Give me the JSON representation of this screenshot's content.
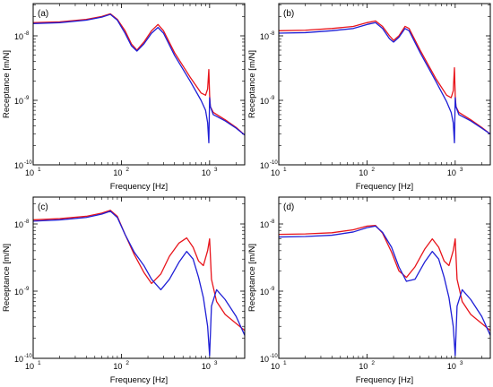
{
  "colors": {
    "red": "#e8141b",
    "blue": "#1f1fd6"
  },
  "chart_data": [
    {
      "type": "line",
      "panel_label": "(a)",
      "xlabel": "Frequency [Hz]",
      "ylabel": "Receptance [m/N]",
      "xscale": "log",
      "yscale": "log",
      "xlim": [
        10,
        2500
      ],
      "ylim": [
        1e-10,
        5e-08
      ],
      "x_tick_labels": [
        "10",
        "10",
        "10"
      ],
      "x_tick_exponents": [
        "1",
        "2",
        "3"
      ],
      "y_tick_labels": [
        "10",
        "10",
        "10"
      ],
      "y_tick_exponents": [
        "-10",
        "-9",
        "-8"
      ],
      "series": [
        {
          "color": "red",
          "x": [
            10,
            20,
            40,
            60,
            75,
            90,
            110,
            130,
            150,
            180,
            220,
            260,
            300,
            400,
            600,
            800,
            900,
            950,
            980,
            1000,
            1020,
            1100,
            1500,
            2000,
            2500
          ],
          "y": [
            1.6e-08,
            1.65e-08,
            1.8e-08,
            2e-08,
            2.2e-08,
            1.8e-08,
            1.2e-08,
            7.5e-09,
            6e-09,
            8e-09,
            1.2e-08,
            1.5e-08,
            1.2e-08,
            5.5e-09,
            2.3e-09,
            1.3e-09,
            1.2e-09,
            1.5e-09,
            3e-09,
            1.2e-09,
            8e-10,
            6.5e-10,
            5e-10,
            3.8e-10,
            2.9e-10
          ]
        },
        {
          "color": "blue",
          "x": [
            10,
            20,
            40,
            60,
            75,
            90,
            110,
            130,
            150,
            180,
            220,
            260,
            300,
            400,
            600,
            800,
            900,
            950,
            980,
            1000,
            1020,
            1100,
            1500,
            2000,
            2500
          ],
          "y": [
            1.55e-08,
            1.6e-08,
            1.75e-08,
            1.95e-08,
            2.15e-08,
            1.75e-08,
            1.1e-08,
            7e-09,
            5.8e-09,
            7.5e-09,
            1.1e-08,
            1.35e-08,
            1.1e-08,
            5e-09,
            2e-09,
            1e-09,
            7e-10,
            4.5e-10,
            2.2e-10,
            1.1e-09,
            8e-10,
            6e-10,
            4.8e-10,
            3.7e-10,
            2.9e-10
          ]
        }
      ]
    },
    {
      "type": "line",
      "panel_label": "(b)",
      "xlabel": "Frequency [Hz]",
      "ylabel": "Receptance [m/N]",
      "xscale": "log",
      "yscale": "log",
      "xlim": [
        10,
        2500
      ],
      "ylim": [
        1e-10,
        5e-08
      ],
      "x_tick_labels": [
        "10",
        "10",
        "10"
      ],
      "x_tick_exponents": [
        "1",
        "2",
        "3"
      ],
      "y_tick_labels": [
        "10",
        "10",
        "10"
      ],
      "y_tick_exponents": [
        "-10",
        "-9",
        "-8"
      ],
      "series": [
        {
          "color": "red",
          "x": [
            10,
            20,
            40,
            70,
            100,
            125,
            150,
            180,
            200,
            230,
            270,
            300,
            400,
            600,
            800,
            900,
            950,
            980,
            1000,
            1020,
            1100,
            1500,
            2000,
            2500
          ],
          "y": [
            1.2e-08,
            1.22e-08,
            1.3e-08,
            1.4e-08,
            1.6e-08,
            1.7e-08,
            1.4e-08,
            1e-08,
            8.5e-09,
            1e-08,
            1.4e-08,
            1.3e-08,
            6e-09,
            2.2e-09,
            1.2e-09,
            1.1e-09,
            1.4e-09,
            3.2e-09,
            1.2e-09,
            8e-10,
            6.5e-10,
            5e-10,
            3.8e-10,
            3e-10
          ]
        },
        {
          "color": "blue",
          "x": [
            10,
            20,
            40,
            70,
            100,
            125,
            150,
            180,
            200,
            230,
            270,
            300,
            400,
            600,
            800,
            900,
            950,
            980,
            1000,
            1020,
            1100,
            1500,
            2000,
            2500
          ],
          "y": [
            1.1e-08,
            1.12e-08,
            1.2e-08,
            1.3e-08,
            1.5e-08,
            1.6e-08,
            1.3e-08,
            9e-09,
            8e-09,
            9.5e-09,
            1.3e-08,
            1.2e-08,
            5.5e-09,
            2e-09,
            9.5e-10,
            6.5e-10,
            4.5e-10,
            2.2e-10,
            1.1e-09,
            8e-10,
            6e-10,
            4.8e-10,
            3.7e-10,
            3e-10
          ]
        }
      ]
    },
    {
      "type": "line",
      "panel_label": "(c)",
      "xlabel": "Frequency [Hz]",
      "ylabel": "Receptance [m/N]",
      "xscale": "log",
      "yscale": "log",
      "xlim": [
        10,
        2500
      ],
      "ylim": [
        1e-10,
        3e-08
      ],
      "x_tick_labels": [
        "10",
        "10",
        "10"
      ],
      "x_tick_exponents": [
        "1",
        "2",
        "3"
      ],
      "y_tick_labels": [
        "10",
        "10",
        "10"
      ],
      "y_tick_exponents": [
        "-10",
        "-9",
        "-8"
      ],
      "series": [
        {
          "color": "red",
          "x": [
            10,
            20,
            40,
            60,
            75,
            90,
            110,
            140,
            180,
            220,
            280,
            350,
            450,
            550,
            650,
            750,
            850,
            950,
            1000,
            1050,
            1200,
            1500,
            2000,
            2500
          ],
          "y": [
            1.15e-08,
            1.2e-08,
            1.3e-08,
            1.45e-08,
            1.6e-08,
            1.3e-08,
            7e-09,
            3.5e-09,
            1.9e-09,
            1.3e-09,
            1.8e-09,
            3.3e-09,
            5.2e-09,
            6.2e-09,
            4.5e-09,
            2.8e-09,
            2.4e-09,
            4e-09,
            6e-09,
            1.5e-09,
            7e-10,
            4.5e-10,
            3.3e-10,
            2.6e-10
          ]
        },
        {
          "color": "blue",
          "x": [
            10,
            20,
            40,
            60,
            75,
            90,
            110,
            140,
            180,
            220,
            280,
            350,
            450,
            550,
            650,
            750,
            850,
            950,
            1000,
            1050,
            1200,
            1500,
            2000,
            2500
          ],
          "y": [
            1.1e-08,
            1.15e-08,
            1.25e-08,
            1.4e-08,
            1.55e-08,
            1.25e-08,
            7e-09,
            3.8e-09,
            2.4e-09,
            1.5e-09,
            1.05e-09,
            1.5e-09,
            2.7e-09,
            3.9e-09,
            3e-09,
            1.6e-09,
            8e-10,
            3e-10,
            1.1e-10,
            6e-10,
            1.05e-09,
            7.5e-10,
            4.2e-10,
            2.2e-10
          ]
        }
      ]
    },
    {
      "type": "line",
      "panel_label": "(d)",
      "xlabel": "Frequency [Hz]",
      "ylabel": "Receptance [m/N]",
      "xscale": "log",
      "yscale": "log",
      "xlim": [
        10,
        2500
      ],
      "ylim": [
        1e-10,
        3e-08
      ],
      "x_tick_labels": [
        "10",
        "10",
        "10"
      ],
      "x_tick_exponents": [
        "1",
        "2",
        "3"
      ],
      "y_tick_labels": [
        "10",
        "10",
        "10"
      ],
      "y_tick_exponents": [
        "-10",
        "-9",
        "-8"
      ],
      "series": [
        {
          "color": "red",
          "x": [
            10,
            20,
            40,
            70,
            100,
            125,
            150,
            190,
            230,
            280,
            350,
            450,
            550,
            650,
            750,
            850,
            950,
            1000,
            1050,
            1200,
            1500,
            2000,
            2500
          ],
          "y": [
            7e-09,
            7.1e-09,
            7.4e-09,
            8.2e-09,
            9.3e-09,
            9.5e-09,
            7.3e-09,
            3.8e-09,
            2e-09,
            1.6e-09,
            2.3e-09,
            4.2e-09,
            6e-09,
            4.5e-09,
            2.8e-09,
            2.4e-09,
            4e-09,
            6e-09,
            1.5e-09,
            7e-10,
            4.5e-10,
            3.3e-10,
            2.6e-10
          ]
        },
        {
          "color": "blue",
          "x": [
            10,
            20,
            40,
            70,
            100,
            125,
            150,
            190,
            230,
            280,
            350,
            450,
            550,
            650,
            750,
            850,
            950,
            1000,
            1050,
            1200,
            1500,
            2000,
            2500
          ],
          "y": [
            6.4e-09,
            6.5e-09,
            6.8e-09,
            7.6e-09,
            8.8e-09,
            9.3e-09,
            7.5e-09,
            4.5e-09,
            2.3e-09,
            1.4e-09,
            1.5e-09,
            2.7e-09,
            3.9e-09,
            3e-09,
            1.6e-09,
            8e-10,
            3e-10,
            1.1e-10,
            6e-10,
            1.05e-09,
            7.5e-10,
            4.2e-10,
            2.2e-10
          ]
        }
      ]
    }
  ]
}
